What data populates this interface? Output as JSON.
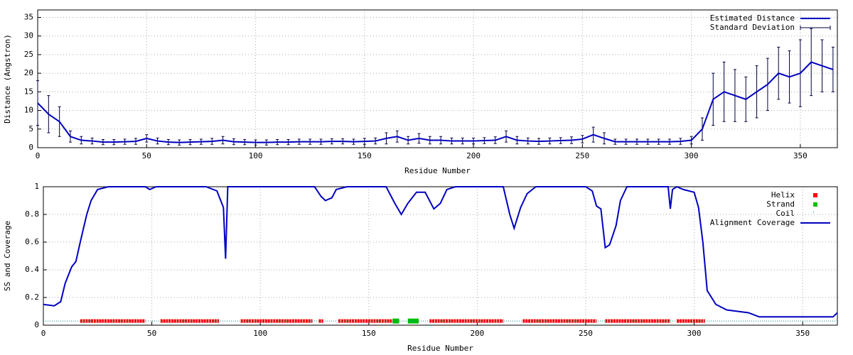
{
  "chart_data": [
    {
      "type": "errorline",
      "xlabel": "Residue Number",
      "ylabel": "Distance (Angstron)",
      "xlim": [
        0,
        367
      ],
      "ylim": [
        0,
        37
      ],
      "xticks": [
        0,
        50,
        100,
        150,
        200,
        250,
        300,
        350
      ],
      "yticks": [
        0,
        5,
        10,
        15,
        20,
        25,
        30,
        35
      ],
      "grid": true,
      "legend": "top-right",
      "x": [
        0,
        5,
        10,
        15,
        20,
        25,
        30,
        35,
        40,
        45,
        50,
        55,
        60,
        65,
        70,
        75,
        80,
        85,
        90,
        95,
        100,
        105,
        110,
        115,
        120,
        125,
        130,
        135,
        140,
        145,
        150,
        155,
        160,
        165,
        170,
        175,
        180,
        185,
        190,
        195,
        200,
        205,
        210,
        215,
        220,
        225,
        230,
        235,
        240,
        245,
        250,
        255,
        260,
        265,
        270,
        275,
        280,
        285,
        290,
        295,
        300,
        305,
        310,
        315,
        320,
        325,
        330,
        335,
        340,
        345,
        350,
        355,
        360,
        365
      ],
      "series": [
        {
          "name": "Estimated Distance",
          "color": "#0000c0",
          "values": [
            12,
            9,
            7,
            3,
            2,
            1.8,
            1.5,
            1.5,
            1.6,
            1.7,
            2.5,
            1.8,
            1.5,
            1.4,
            1.5,
            1.6,
            1.7,
            2,
            1.6,
            1.5,
            1.4,
            1.4,
            1.5,
            1.5,
            1.6,
            1.6,
            1.6,
            1.7,
            1.7,
            1.6,
            1.7,
            1.8,
            2.5,
            3,
            2,
            2.5,
            2,
            2,
            1.8,
            1.8,
            1.8,
            1.9,
            2,
            3,
            2,
            1.8,
            1.7,
            1.8,
            1.9,
            2,
            2.3,
            3.5,
            2.5,
            1.6,
            1.6,
            1.6,
            1.6,
            1.6,
            1.6,
            1.7,
            2,
            5,
            13,
            15,
            14,
            13,
            15,
            17,
            20,
            19,
            20,
            23,
            22,
            21
          ],
          "error_name": "Standard Deviation",
          "error_color": "#000040",
          "errors": [
            6,
            5,
            4,
            1.5,
            1,
            0.8,
            0.7,
            0.7,
            0.7,
            0.8,
            1,
            0.8,
            0.7,
            0.7,
            0.7,
            0.7,
            0.8,
            1,
            0.8,
            0.7,
            0.7,
            0.7,
            0.7,
            0.7,
            0.7,
            0.7,
            0.7,
            0.7,
            0.7,
            0.7,
            0.8,
            0.8,
            1.5,
            1.5,
            1,
            1.3,
            1,
            1,
            0.8,
            0.8,
            0.8,
            0.8,
            0.9,
            1.5,
            1,
            0.8,
            0.8,
            0.8,
            0.8,
            0.9,
            1,
            2,
            1.5,
            0.7,
            0.7,
            0.7,
            0.7,
            0.7,
            0.7,
            0.8,
            1,
            3,
            7,
            8,
            7,
            6,
            7,
            7,
            7,
            7,
            9,
            9,
            7,
            6
          ]
        }
      ]
    },
    {
      "type": "ss",
      "xlabel": "Residue Number",
      "ylabel": "SS and Coverage",
      "xlim": [
        0,
        366
      ],
      "ylim": [
        0,
        1
      ],
      "xticks": [
        0,
        50,
        100,
        150,
        200,
        250,
        300,
        350
      ],
      "yticks": [
        0,
        0.2,
        0.4,
        0.6,
        0.8,
        1
      ],
      "grid": true,
      "legend": "top-right",
      "ss_y": 0.03,
      "ss": [
        {
          "name": "Helix",
          "color": "#ff0000",
          "segments": [
            [
              17,
              47
            ],
            [
              54,
              81
            ],
            [
              91,
              124
            ],
            [
              127,
              129
            ],
            [
              136,
              161
            ],
            [
              178,
              212
            ],
            [
              221,
              255
            ],
            [
              259,
              289
            ],
            [
              292,
              305
            ]
          ]
        },
        {
          "name": "Strand",
          "color": "#00c000",
          "segments": [
            [
              161,
              164
            ],
            [
              168,
              173
            ]
          ]
        },
        {
          "name": "Coil",
          "color": "#008080",
          "segments": [
            [
              0,
              366
            ]
          ]
        }
      ],
      "series": [
        {
          "name": "Alignment Coverage",
          "color": "#0000c0",
          "x": [
            0,
            5,
            8,
            10,
            13,
            15,
            17,
            20,
            22,
            25,
            30,
            47,
            49,
            52,
            75,
            80,
            83,
            84,
            85,
            125,
            128,
            130,
            133,
            135,
            140,
            158,
            162,
            165,
            168,
            172,
            176,
            180,
            183,
            186,
            190,
            212,
            215,
            217,
            220,
            223,
            227,
            250,
            253,
            255,
            257,
            258,
            259,
            261,
            264,
            266,
            269,
            288,
            289,
            290,
            292,
            295,
            300,
            302,
            304,
            306,
            310,
            315,
            320,
            325,
            330,
            340,
            350,
            360,
            364,
            366
          ],
          "values": [
            0.15,
            0.14,
            0.17,
            0.3,
            0.42,
            0.46,
            0.6,
            0.8,
            0.9,
            0.98,
            1,
            1,
            0.98,
            1,
            1,
            0.97,
            0.85,
            0.48,
            1,
            1,
            0.93,
            0.9,
            0.92,
            0.98,
            1,
            1,
            0.88,
            0.8,
            0.88,
            0.96,
            0.96,
            0.84,
            0.88,
            0.98,
            1,
            1,
            0.8,
            0.7,
            0.85,
            0.95,
            1,
            1,
            0.97,
            0.86,
            0.84,
            0.7,
            0.56,
            0.58,
            0.72,
            0.9,
            1,
            1,
            0.84,
            0.98,
            1,
            0.98,
            0.96,
            0.85,
            0.6,
            0.25,
            0.15,
            0.11,
            0.1,
            0.09,
            0.06,
            0.06,
            0.06,
            0.06,
            0.06,
            0.09
          ]
        }
      ]
    }
  ]
}
